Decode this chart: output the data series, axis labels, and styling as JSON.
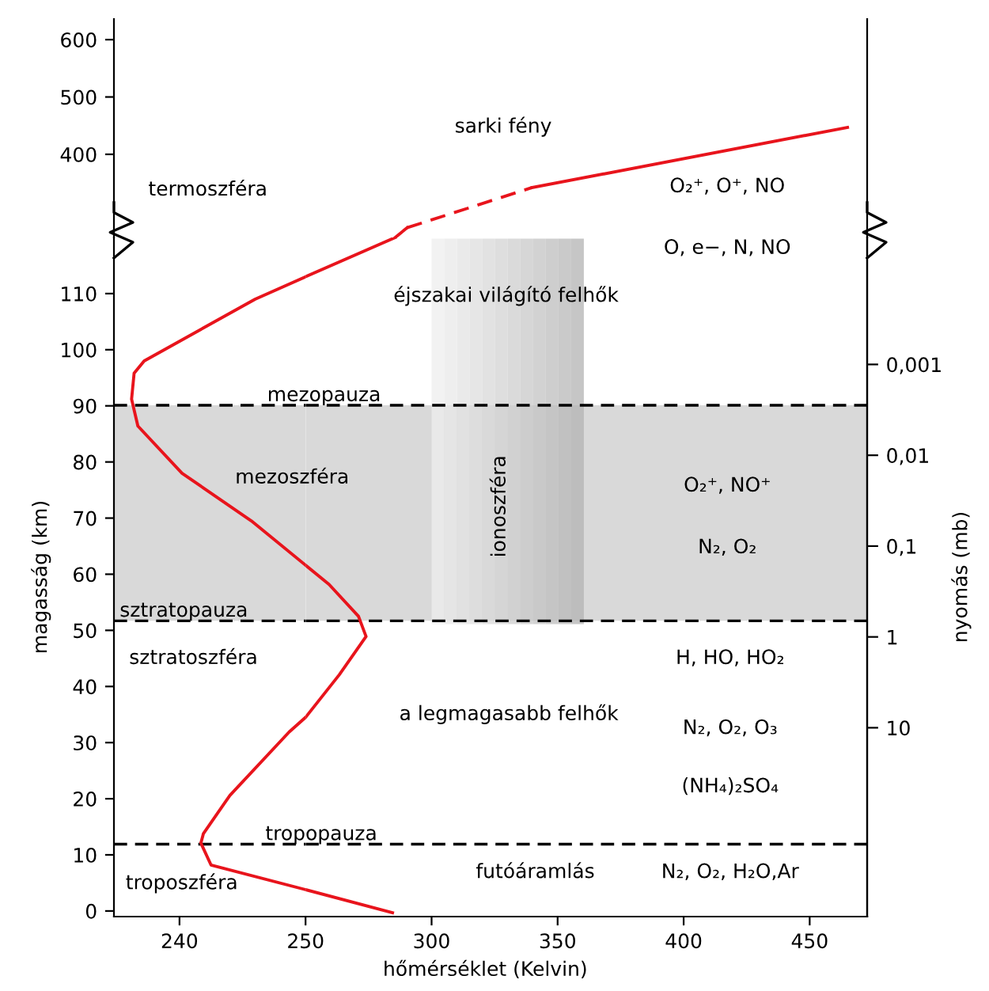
{
  "chart_data": [
    {
      "type": "line",
      "xlim": [
        234.8,
        250
      ],
      "ylim": [
        255,
        636
      ],
      "yticks": [
        400,
        500,
        600
      ],
      "tick_labels": "y",
      "grid": false,
      "annotations": [
        "termoszféra"
      ]
    },
    {
      "type": "line",
      "xlim": [
        250,
        472.8
      ],
      "ylim": [
        255,
        636
      ],
      "tick_labels": false,
      "grid": false,
      "series": [
        {
          "color": "#e8141c",
          "line_style": "solid",
          "x": [
            285.6,
            290.3
          ],
          "values": [
            255,
            272
          ]
        },
        {
          "color": "#e8141c",
          "line_style": "dashed",
          "x": [
            290.3,
            339.9
          ],
          "values": [
            272,
            342
          ]
        },
        {
          "color": "#e8141c",
          "line_style": "solid",
          "x": [
            339.9,
            465
          ],
          "values": [
            342,
            447
          ]
        }
      ],
      "annotations": [
        "sarki fény",
        "O₂⁺, O⁺, NO"
      ]
    },
    {
      "type": "line",
      "xlim": [
        234.8,
        250
      ],
      "ylim": [
        -1,
        120
      ],
      "yticks": [
        0,
        10,
        20,
        30,
        40,
        50,
        60,
        70,
        80,
        90,
        100,
        110
      ],
      "xticks": [
        240,
        250
      ],
      "ylabel": "magasság (km)",
      "grid": false,
      "series": [
        {
          "color": "#e8141c",
          "line_style": "solid",
          "x": [
            250,
            242.5,
            241.7,
            241.9,
            244.0,
            248.7,
            250,
            null,
            250,
            245.7,
            240.2,
            236.7,
            236.2,
            236.4,
            237.2,
            246.0,
            250
          ],
          "values": [
            3.8,
            8.2,
            12.1,
            13.8,
            20.6,
            31.9,
            34.5,
            null,
            61.6,
            69.5,
            78,
            86.4,
            91.2,
            95.8,
            98,
            109,
            113
          ]
        }
      ],
      "bands": [
        {
          "axis": "y",
          "from": 51.7,
          "to": 90.1,
          "color": "#d9d9d9"
        }
      ],
      "ref_lines": [
        {
          "axis": "y",
          "value": 90.1,
          "label": "mezopauza",
          "color": "#000000",
          "line_style": "dashed"
        },
        {
          "axis": "y",
          "value": 51.7,
          "label": "sztratopauza",
          "color": "#000000",
          "line_style": "dashed"
        },
        {
          "axis": "y",
          "value": 11.9,
          "label": "tropopauza",
          "color": "#000000",
          "line_style": "dashed"
        }
      ],
      "annotations": [
        "mezoszféra",
        "sztratoszféra",
        "troposzféra"
      ]
    },
    {
      "type": "line",
      "xlim": [
        250,
        472.8
      ],
      "ylim": [
        -1,
        120
      ],
      "xticks": [
        300,
        350,
        400,
        450
      ],
      "tick_labels": "x",
      "xlabel": "hőmérséklet (Kelvin)",
      "y2label": "nyomás (mb)",
      "log": "y2",
      "y2lim": [
        1200,
        4e-05
      ],
      "y2ticks": [
        {
          "value": 0.001,
          "label": "0,001"
        },
        {
          "value": 0.01,
          "label": "0,01"
        },
        {
          "value": 0.1,
          "label": "0,1"
        },
        {
          "value": 1,
          "label": "1"
        },
        {
          "value": 10,
          "label": "10"
        }
      ],
      "grid": false,
      "series": [
        {
          "color": "#e8141c",
          "line_style": "solid",
          "x": [
            284.5,
            250,
            null,
            250,
            263.4,
            274,
            271,
            259.3,
            250,
            null,
            250,
            285.6
          ],
          "values": [
            -0.3,
            3.8,
            null,
            34.5,
            42.1,
            48.9,
            52.5,
            58.2,
            61.6,
            null,
            113,
            120
          ]
        }
      ],
      "bands": [
        {
          "axis": "y",
          "from": 51.7,
          "to": 90.1,
          "color": "#d9d9d9"
        }
      ],
      "ref_lines": [
        {
          "axis": "y",
          "value": 90.1,
          "color": "#000000",
          "line_style": "dashed"
        },
        {
          "axis": "y",
          "value": 51.7,
          "color": "#000000",
          "line_style": "dashed"
        },
        {
          "axis": "y",
          "value": 11.9,
          "color": "#000000",
          "line_style": "dashed"
        }
      ],
      "annotations": [
        "O, e−, N, NO",
        "éjszakai világító felhők",
        "ionoszféra",
        "O₂⁺, NO⁺",
        "N₂, O₂",
        "H, HO, HO₂",
        "a legmagasabb felhők",
        "N₂, O₂, O₃",
        "(NH₄)₂SO₄",
        "futóáramlás",
        "N₂, O₂, H₂O,Ar"
      ]
    }
  ]
}
